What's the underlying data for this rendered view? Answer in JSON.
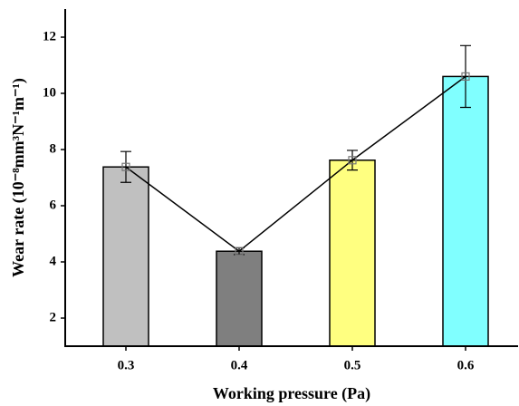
{
  "chart_data": {
    "type": "bar",
    "xlabel": "Working pressure (Pa)",
    "ylabel": "Wear rate (10⁻⁸mm³N⁻¹m⁻¹)",
    "categories": [
      "0.3",
      "0.4",
      "0.5",
      "0.6"
    ],
    "values": [
      7.38,
      4.38,
      7.62,
      10.6
    ],
    "errors": [
      0.55,
      0.12,
      0.35,
      1.1
    ],
    "colors": [
      "#c0c0c0",
      "#7f7f7f",
      "#ffff80",
      "#80ffff"
    ],
    "line_color": "#000000",
    "ylim": [
      1,
      13
    ],
    "yticks": [
      2,
      4,
      6,
      8,
      10,
      12
    ]
  }
}
